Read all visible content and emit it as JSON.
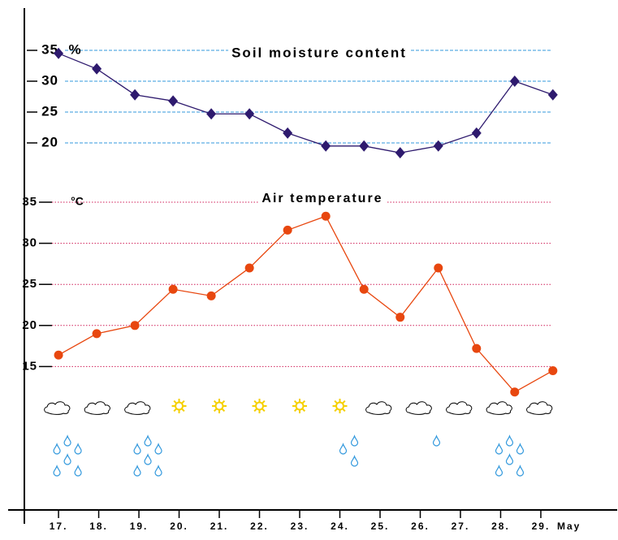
{
  "chart_data": [
    {
      "type": "line",
      "title": "Soil moisture content",
      "y_unit": "%",
      "x": [
        17,
        17.95,
        18.9,
        19.85,
        20.8,
        21.75,
        22.7,
        23.65,
        24.6,
        25.5,
        26.45,
        27.4,
        28.35,
        29.3
      ],
      "values": [
        34.5,
        32,
        27.8,
        26.8,
        24.7,
        24.7,
        21.6,
        19.5,
        19.5,
        18.4,
        19.5,
        21.6,
        30,
        27.8
      ],
      "color": "#2e1a6e",
      "marker": "diamond",
      "grid": true,
      "grid_color": "#3399dd",
      "grid_style": "dashed",
      "xlim": [
        16.15,
        30.9
      ],
      "ylim": [
        15,
        35
      ],
      "yticks": [
        20,
        25,
        30,
        35
      ]
    },
    {
      "type": "line",
      "title": "Air temperature",
      "y_unit": "°C",
      "x": [
        17,
        17.95,
        18.9,
        19.85,
        20.8,
        21.75,
        22.7,
        23.65,
        24.6,
        25.5,
        26.45,
        27.4,
        28.35,
        29.3
      ],
      "values": [
        16.4,
        19,
        20,
        24.4,
        23.6,
        27,
        31.6,
        33.3,
        24.4,
        21,
        27,
        17.2,
        11.9,
        14.5
      ],
      "color": "#e8470f",
      "marker": "circle",
      "grid": true,
      "grid_color": "#d0205a",
      "grid_style": "dotted",
      "xlim": [
        16.15,
        30.9
      ],
      "ylim": [
        10,
        35
      ],
      "yticks": [
        15,
        20,
        25,
        30,
        35
      ],
      "xticks": [
        {
          "value": 17,
          "label": "17."
        },
        {
          "value": 18,
          "label": "18."
        },
        {
          "value": 19,
          "label": "19."
        },
        {
          "value": 20,
          "label": "20."
        },
        {
          "value": 21,
          "label": "21."
        },
        {
          "value": 22,
          "label": "22."
        },
        {
          "value": 23,
          "label": "23."
        },
        {
          "value": 24,
          "label": "24."
        },
        {
          "value": 25,
          "label": "25."
        },
        {
          "value": 26,
          "label": "26."
        },
        {
          "value": 27,
          "label": "27."
        },
        {
          "value": 28,
          "label": "28."
        },
        {
          "value": 29,
          "label": "29."
        }
      ],
      "x_unit": "May",
      "weather": [
        "cloud",
        "cloud",
        "cloud",
        "sun",
        "sun",
        "sun",
        "sun",
        "sun",
        "cloud",
        "cloud",
        "cloud",
        "cloud",
        "cloud"
      ],
      "rain": [
        6,
        0,
        6,
        0,
        0,
        0,
        0,
        3,
        0,
        1,
        0,
        6,
        0
      ]
    }
  ]
}
